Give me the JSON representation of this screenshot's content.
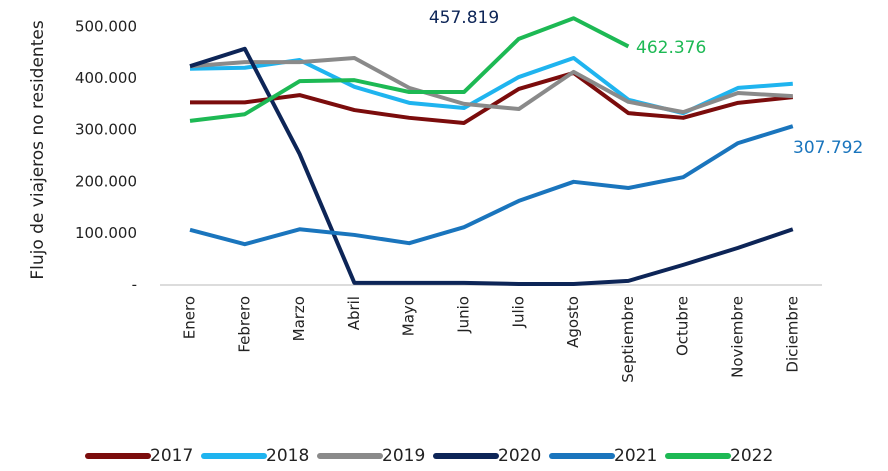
{
  "chart_data": {
    "type": "line",
    "y_label": "Flujo de viajeros no residentes",
    "categories": [
      "Enero",
      "Febrero",
      "Marzo",
      "Abril",
      "Mayo",
      "Junio",
      "Julio",
      "Agosto",
      "Septiembre",
      "Octubre",
      "Noviembre",
      "Diciembre"
    ],
    "ylim": [
      0,
      500000
    ],
    "yticks": [
      {
        "value": 0,
        "label": "-"
      },
      {
        "value": 100000,
        "label": "100.000"
      },
      {
        "value": 200000,
        "label": "200.000"
      },
      {
        "value": 300000,
        "label": "300.000"
      },
      {
        "value": 400000,
        "label": "400.000"
      },
      {
        "value": 500000,
        "label": "500.000"
      }
    ],
    "grid": false,
    "legend": "bottom",
    "series": [
      {
        "name": "2017",
        "color": "#7b0c0c",
        "values": [
          354000,
          354000,
          368000,
          339000,
          324000,
          314000,
          380000,
          411000,
          333000,
          324000,
          353000,
          364000
        ]
      },
      {
        "name": "2018",
        "color": "#1fb4ef",
        "values": [
          419000,
          421000,
          436000,
          384000,
          353000,
          343000,
          403000,
          440000,
          359000,
          333000,
          382000,
          390000
        ]
      },
      {
        "name": "2019",
        "color": "#8a8a8a",
        "values": [
          424000,
          432000,
          432000,
          440000,
          382000,
          351000,
          341000,
          413000,
          355000,
          335000,
          372000,
          366000
        ]
      },
      {
        "name": "2020",
        "color": "#0d2557",
        "values": [
          424000,
          457819,
          254000,
          4000,
          4000,
          4000,
          2000,
          2000,
          8000,
          39000,
          72000,
          108000
        ]
      },
      {
        "name": "2021",
        "color": "#1a75bd",
        "values": [
          107000,
          79000,
          108000,
          97000,
          81000,
          112000,
          163000,
          200000,
          188000,
          209000,
          275000,
          307792
        ]
      },
      {
        "name": "2022",
        "color": "#1db954",
        "values": [
          318000,
          331000,
          395000,
          397000,
          374000,
          374000,
          477000,
          517000,
          462376,
          null,
          null,
          null
        ]
      }
    ],
    "annotations": [
      {
        "text": "457.819",
        "color": "#0d2557"
      },
      {
        "text": "462.376",
        "color": "#1db954"
      },
      {
        "text": "307.792",
        "color": "#1a75bd"
      }
    ]
  }
}
